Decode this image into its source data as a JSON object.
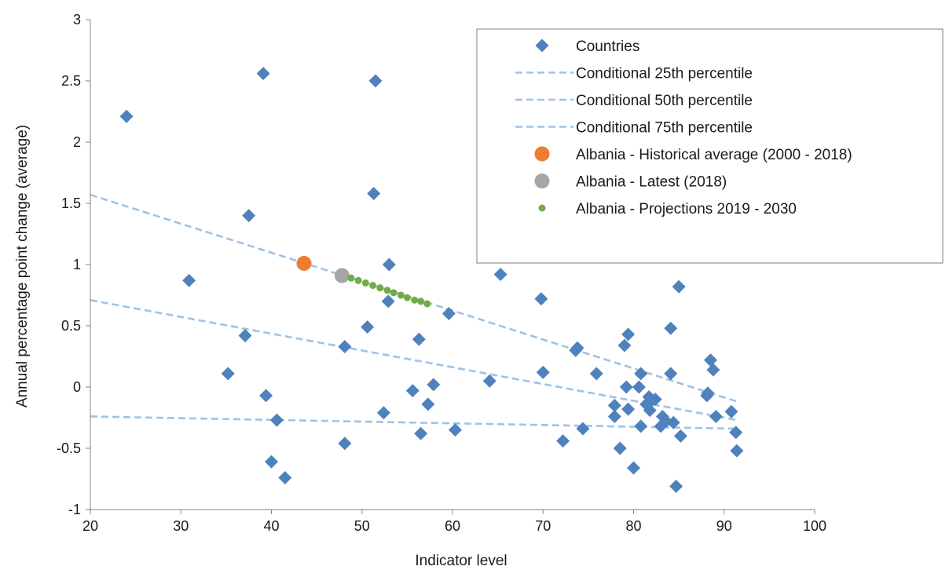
{
  "chart_data": {
    "type": "scatter",
    "xlabel": "Indicator level",
    "ylabel": "Annual percentage point change (average)",
    "xlim": [
      20,
      100
    ],
    "ylim": [
      -1,
      3
    ],
    "xticks": [
      20,
      30,
      40,
      50,
      60,
      70,
      80,
      90,
      100
    ],
    "yticks": [
      -1,
      -0.5,
      0,
      0.5,
      1,
      1.5,
      2,
      2.5,
      3
    ],
    "xtick_labels": [
      "20",
      "30",
      "40",
      "50",
      "60",
      "70",
      "80",
      "90",
      "100"
    ],
    "ytick_labels": [
      "-1",
      "-0.5",
      "0",
      "0.5",
      "1",
      "1.5",
      "2",
      "2.5",
      "3"
    ],
    "grid": false,
    "legend_position": "top-right",
    "colors": {
      "countries": "#4f81bd",
      "percentile_lines": "#9dc3e6",
      "historical": "#ed7d31",
      "latest": "#a5a5a5",
      "projections": "#70ad47"
    },
    "series": [
      {
        "name": "Countries",
        "kind": "scatter",
        "marker": "diamond",
        "points": [
          [
            24,
            2.21
          ],
          [
            30.9,
            0.87
          ],
          [
            35.2,
            0.11
          ],
          [
            37.1,
            0.42
          ],
          [
            37.5,
            1.4
          ],
          [
            39.1,
            2.56
          ],
          [
            39.4,
            -0.07
          ],
          [
            40.0,
            -0.61
          ],
          [
            40.6,
            -0.27
          ],
          [
            41.5,
            -0.74
          ],
          [
            48.1,
            0.33
          ],
          [
            48.1,
            -0.46
          ],
          [
            50.6,
            0.49
          ],
          [
            51.3,
            1.58
          ],
          [
            51.5,
            2.5
          ],
          [
            52.4,
            -0.21
          ],
          [
            52.9,
            0.7
          ],
          [
            53.0,
            1.0
          ],
          [
            55.6,
            -0.03
          ],
          [
            56.3,
            0.39
          ],
          [
            56.5,
            -0.38
          ],
          [
            57.3,
            -0.14
          ],
          [
            57.9,
            0.02
          ],
          [
            59.6,
            0.6
          ],
          [
            60.3,
            -0.35
          ],
          [
            64.1,
            0.05
          ],
          [
            65.3,
            0.92
          ],
          [
            69.8,
            0.72
          ],
          [
            70.0,
            0.12
          ],
          [
            72.2,
            -0.44
          ],
          [
            73.6,
            0.3
          ],
          [
            73.8,
            0.32
          ],
          [
            74.4,
            -0.34
          ],
          [
            75.9,
            0.11
          ],
          [
            77.9,
            -0.15
          ],
          [
            77.9,
            -0.24
          ],
          [
            78.5,
            -0.5
          ],
          [
            79.0,
            0.34
          ],
          [
            79.2,
            0.0
          ],
          [
            79.4,
            0.43
          ],
          [
            79.4,
            -0.18
          ],
          [
            80.0,
            -0.66
          ],
          [
            80.6,
            0.0
          ],
          [
            80.8,
            0.11
          ],
          [
            80.8,
            -0.32
          ],
          [
            81.4,
            -0.14
          ],
          [
            81.7,
            -0.08
          ],
          [
            81.8,
            -0.19
          ],
          [
            82.0,
            -0.11
          ],
          [
            82.4,
            -0.1
          ],
          [
            83.0,
            -0.32
          ],
          [
            83.2,
            -0.24
          ],
          [
            83.6,
            -0.28
          ],
          [
            84.1,
            0.11
          ],
          [
            84.1,
            0.48
          ],
          [
            84.4,
            -0.29
          ],
          [
            84.7,
            -0.81
          ],
          [
            85.0,
            0.82
          ],
          [
            85.2,
            -0.4
          ],
          [
            88.1,
            -0.07
          ],
          [
            88.2,
            -0.05
          ],
          [
            88.5,
            0.22
          ],
          [
            88.8,
            0.14
          ],
          [
            89.1,
            -0.24
          ],
          [
            90.8,
            -0.2
          ],
          [
            91.3,
            -0.37
          ],
          [
            91.4,
            -0.52
          ]
        ]
      },
      {
        "name": "Conditional 25th percentile",
        "kind": "line",
        "dashed": true,
        "points": [
          [
            20,
            -0.24
          ],
          [
            91.5,
            -0.34
          ]
        ]
      },
      {
        "name": "Conditional 50th percentile",
        "kind": "line",
        "dashed": true,
        "points": [
          [
            20,
            0.71
          ],
          [
            91.5,
            -0.27
          ]
        ]
      },
      {
        "name": "Conditional 75th percentile",
        "kind": "line",
        "dashed": true,
        "points": [
          [
            20,
            1.57
          ],
          [
            91.5,
            -0.12
          ]
        ]
      },
      {
        "name": "Albania - Historical average (2000 - 2018)",
        "kind": "scatter",
        "marker": "circle-large",
        "points": [
          [
            43.6,
            1.01
          ]
        ]
      },
      {
        "name": "Albania - Latest (2018)",
        "kind": "scatter",
        "marker": "circle-large",
        "points": [
          [
            47.8,
            0.91
          ]
        ]
      },
      {
        "name": "Albania - Projections 2019 - 2030",
        "kind": "scatter",
        "marker": "circle-small",
        "points": [
          [
            48.8,
            0.89
          ],
          [
            49.6,
            0.87
          ],
          [
            50.4,
            0.85
          ],
          [
            51.2,
            0.83
          ],
          [
            52.0,
            0.81
          ],
          [
            52.8,
            0.79
          ],
          [
            53.5,
            0.77
          ],
          [
            54.3,
            0.75
          ],
          [
            55.0,
            0.73
          ],
          [
            55.8,
            0.71
          ],
          [
            56.5,
            0.7
          ],
          [
            57.2,
            0.68
          ]
        ]
      }
    ]
  }
}
